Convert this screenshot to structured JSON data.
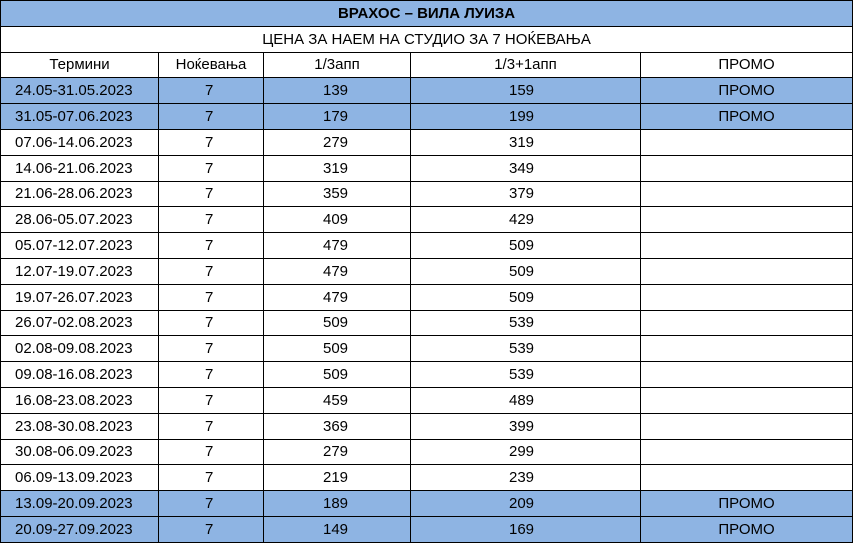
{
  "title": "ВРАХОС – ВИЛА ЛУИЗА",
  "subtitle": "ЦЕНА ЗА НАЕМ НА СТУДИО ЗА 7 НОЌЕВАЊА",
  "columns": [
    "Термини",
    "Ноќевања",
    "1/3апп",
    "1/3+1апп",
    "ПРОМО"
  ],
  "highlight_color": "#8EB4E3",
  "rows": [
    [
      "24.05-31.05.2023",
      "7",
      "139",
      "159",
      "ПРОМО"
    ],
    [
      "31.05-07.06.2023",
      "7",
      "179",
      "199",
      "ПРОМО"
    ],
    [
      "07.06-14.06.2023",
      "7",
      "279",
      "319",
      ""
    ],
    [
      "14.06-21.06.2023",
      "7",
      "319",
      "349",
      ""
    ],
    [
      "21.06-28.06.2023",
      "7",
      "359",
      "379",
      ""
    ],
    [
      "28.06-05.07.2023",
      "7",
      "409",
      "429",
      ""
    ],
    [
      "05.07-12.07.2023",
      "7",
      "479",
      "509",
      ""
    ],
    [
      "12.07-19.07.2023",
      "7",
      "479",
      "509",
      ""
    ],
    [
      "19.07-26.07.2023",
      "7",
      "479",
      "509",
      ""
    ],
    [
      "26.07-02.08.2023",
      "7",
      "509",
      "539",
      ""
    ],
    [
      "02.08-09.08.2023",
      "7",
      "509",
      "539",
      ""
    ],
    [
      "09.08-16.08.2023",
      "7",
      "509",
      "539",
      ""
    ],
    [
      "16.08-23.08.2023",
      "7",
      "459",
      "489",
      ""
    ],
    [
      "23.08-30.08.2023",
      "7",
      "369",
      "399",
      ""
    ],
    [
      "30.08-06.09.2023",
      "7",
      "279",
      "299",
      ""
    ],
    [
      "06.09-13.09.2023",
      "7",
      "219",
      "239",
      ""
    ],
    [
      "13.09-20.09.2023",
      "7",
      "189",
      "209",
      "ПРОМО"
    ],
    [
      "20.09-27.09.2023",
      "7",
      "149",
      "169",
      "ПРОМО"
    ]
  ]
}
